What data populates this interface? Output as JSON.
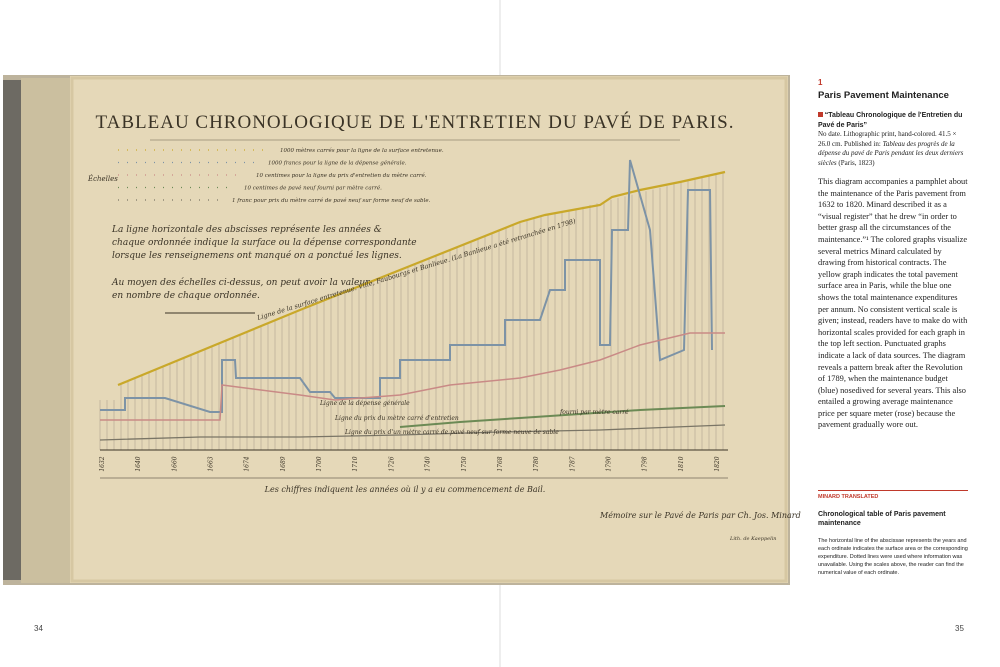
{
  "left_page": {
    "page_number": "34"
  },
  "figure": {
    "title": "TABLEAU CHRONOLOGIQUE DE L'ENTRETIEN DU PAVÉ DE PARIS.",
    "scale_label": "Échelles",
    "scales": [
      "1000 mètres carrés pour la ligne de la surface entretenue.",
      "1000 francs pour la ligne de la dépense générale.",
      "10 centimes pour la ligne du prix d'entretien du mètre carré.",
      "10 centimes de pavé neuf fourni par mètre carré.",
      "1 franc pour prix du mètre carré de pavé neuf sur forme neuf de sable."
    ],
    "legend_text": [
      "La ligne horizontale des abscisses représente les années &",
      "chaque ordonnée indique la surface ou la dépense correspondante",
      "lorsque les renseignemens ont manqué on a ponctué les lignes."
    ],
    "scale_note": [
      "Au moyen des échelles ci-dessus, on peut avoir la valeur",
      "en nombre de chaque ordonnée."
    ],
    "series_labels": [
      "Ligne de la surface entretenue. Ville, Faubourgs et Banlieue. (La Banlieue a été retranchée en 1798)",
      "Ligne de la dépense générale",
      "Ligne du prix du mètre carré d'entretien",
      "Ligne du prix d'un mètre carré de pavé neuf sur forme neuve de sable",
      "fourni par mètre carré"
    ],
    "years": [
      "1632",
      "1640",
      "1660",
      "1663",
      "1674",
      "1689",
      "1700",
      "1710",
      "1726",
      "1740",
      "1750",
      "1768",
      "1780",
      "1787",
      "1790",
      "1798",
      "1810",
      "1820"
    ],
    "footer": "Les chiffres indiquent les années où il y a eu commencement de Bail.",
    "signature": "Mémoire sur le Pavé de Paris par Ch. Jos. Minard",
    "lithographer": "Lith. de Kaeppelin"
  },
  "right_page": {
    "number": "1",
    "title": "Paris Pavement Maintenance",
    "caption_title": "“Tableau Chronologique de l'Entretien du Pavé de Paris”",
    "caption_meta": "No date. Lithographic print, hand-colored. 41.5 × 26.0 cm. Published in:",
    "caption_source": "Tableau des progrès de la dépense du pavé de Paris pendant les deux derniers siècles",
    "caption_date": "(Paris, 1823)",
    "body": "This diagram accompanies a pamphlet about the maintenance of the Paris pavement from 1632 to 1820. Minard described it as a “visual register” that he drew “in order to better grasp all the circumstances of the maintenance.”¹ The colored graphs visualize several metrics Minard calculated by drawing from historical contracts. The yellow graph indicates the total pavement surface area in Paris, while the blue one shows the total maintenance expenditures per annum. No consistent vertical scale is given; instead, readers have to make do with horizontal scales provided for each graph in the top left section. Punctuated graphs indicate a lack of data sources. The diagram reveals a pattern break after the Revolution of 1789, when the maintenance budget (blue) nosedived for several years. This also entailed a growing average maintenance price per square meter (rose) because the pavement gradually wore out.",
    "section_label": "MINARD TRANSLATED",
    "translation_title": "Chronological table of Paris pavement maintenance",
    "translation": "The horizontal line of the abscissae represents the years and each ordinate indicates the surface area or the corresponding expenditure. Dotted lines were used where information was unavailable. Using the scales above, the reader can find the numerical value of each ordinate.",
    "page_number": "35"
  }
}
